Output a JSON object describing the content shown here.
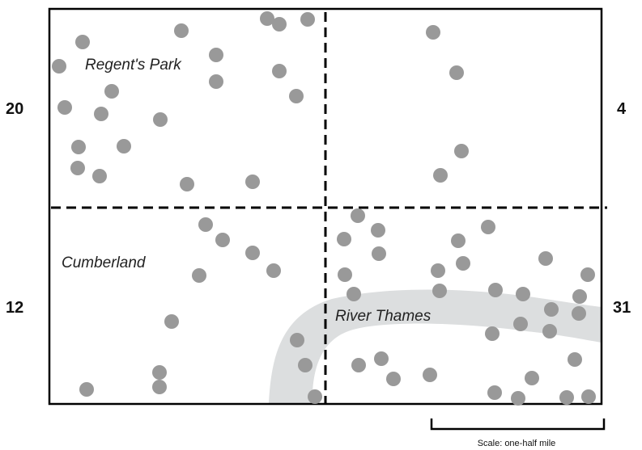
{
  "map": {
    "labels": {
      "regents_park": "Regent's Park",
      "cumberland": "Cumberland",
      "river_thames": "River Thames"
    },
    "quadrant_counts": {
      "top_left": "20",
      "top_right": "4",
      "bottom_left": "12",
      "bottom_right": "31"
    },
    "scale_label": "Scale: one-half mile",
    "colors": {
      "dot": "#999999",
      "river": "#dcdedf",
      "border": "#000000"
    }
  }
}
